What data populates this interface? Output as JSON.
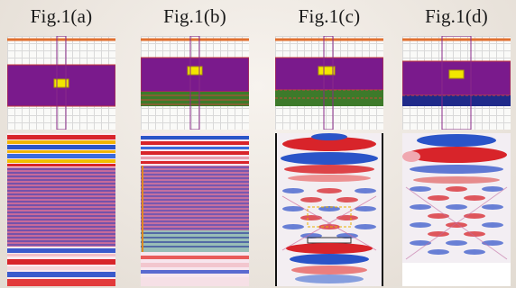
{
  "panels": [
    {
      "id": "a",
      "label": "Fig.1(a)"
    },
    {
      "id": "b",
      "label": "Fig.1(b)"
    },
    {
      "id": "c",
      "label": "Fig.1(c)"
    },
    {
      "id": "d",
      "label": "Fig.1(d)"
    }
  ],
  "colors": {
    "orange_line": "#e07030",
    "purple": "#7a1a8c",
    "green": "#3d7a2a",
    "navy": "#1f2a8a",
    "yellow": "#f2e600",
    "red": "#d8242a",
    "blue": "#2a54c8"
  },
  "schematic": {
    "lower_layer": [
      "none",
      "green",
      "green",
      "navy"
    ]
  }
}
